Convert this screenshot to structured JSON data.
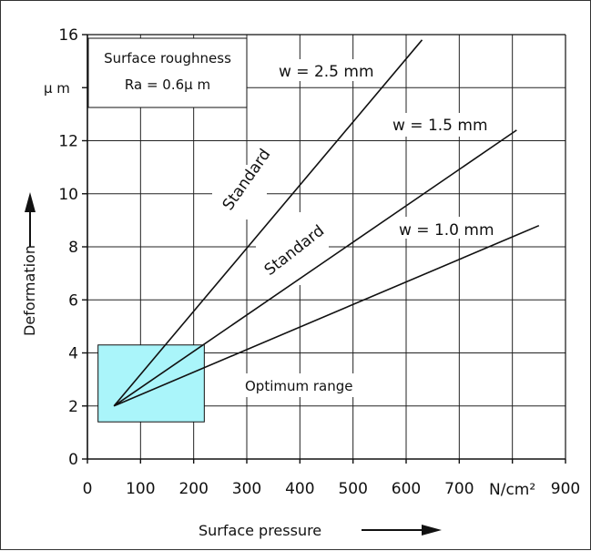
{
  "chart_data": {
    "type": "line",
    "xlabel": "Surface pressure",
    "ylabel": "Deformation",
    "x_unit": "N/cm²",
    "y_unit": "µ m",
    "xlim": [
      0,
      900
    ],
    "ylim": [
      0,
      16
    ],
    "x_ticks": [
      0,
      100,
      200,
      300,
      400,
      500,
      600,
      700,
      900
    ],
    "y_ticks": [
      0,
      2,
      4,
      6,
      8,
      10,
      12,
      16
    ],
    "grid": true,
    "series": [
      {
        "name": "w = 2.5 mm",
        "x": [
          50,
          630
        ],
        "y": [
          2,
          15.8
        ]
      },
      {
        "name": "w = 1.5 mm",
        "x": [
          50,
          808
        ],
        "y": [
          2,
          12.4
        ]
      },
      {
        "name": "w = 1.0 mm",
        "x": [
          50,
          850
        ],
        "y": [
          2,
          8.8
        ]
      }
    ],
    "annotations": {
      "standard_1": "Standard",
      "standard_2": "Standard",
      "optimum_label": "Optimum range",
      "roughness_line1": "Surface roughness",
      "roughness_line2": "Ra = 0.6µ  m"
    },
    "optimum_range": {
      "x": [
        20,
        220
      ],
      "y": [
        1.4,
        4.3
      ],
      "color": "#aaf5fa"
    },
    "line_color": "#111111"
  }
}
